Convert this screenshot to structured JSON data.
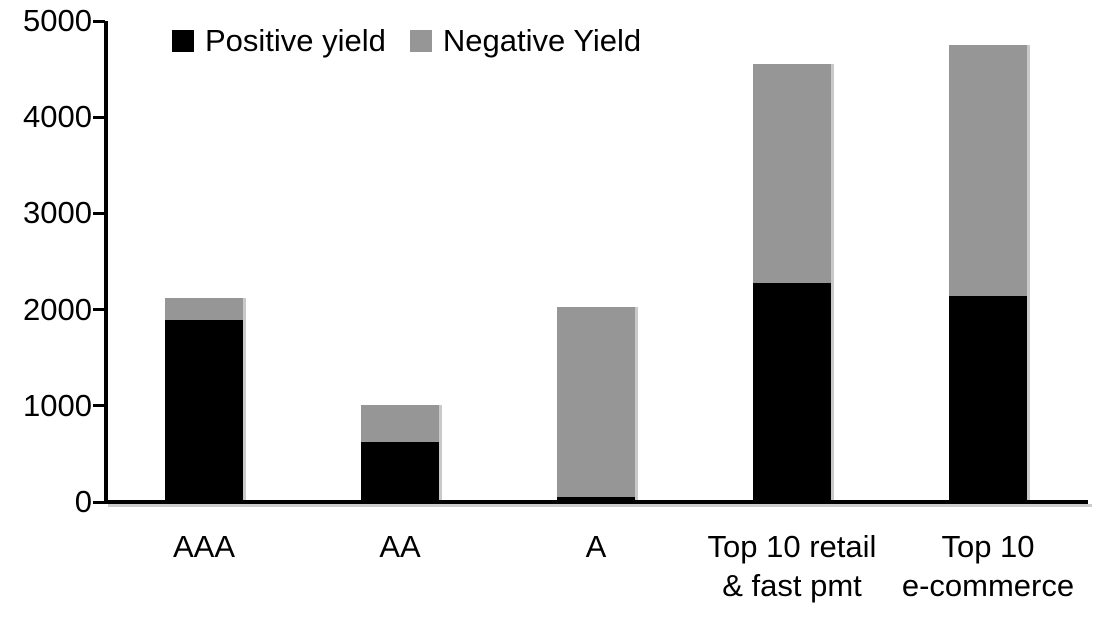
{
  "chart_data": {
    "type": "bar",
    "stacked": true,
    "title": "",
    "xlabel": "",
    "ylabel": "",
    "categories": [
      "AAA",
      "AA",
      "A",
      "Top 10 retail & fast pmt",
      "Top 10 e-commerce"
    ],
    "category_label_lines": [
      [
        "AAA"
      ],
      [
        "AA"
      ],
      [
        "A"
      ],
      [
        "Top 10 retail",
        "& fast pmt"
      ],
      [
        "Top 10",
        "e-commerce"
      ]
    ],
    "series": [
      {
        "name": "Positive yield",
        "color": "#000000",
        "values": [
          1890,
          620,
          50,
          2280,
          2140
        ]
      },
      {
        "name": "Negative Yield",
        "color": "#969696",
        "values": [
          230,
          390,
          1980,
          2270,
          2610
        ]
      }
    ],
    "ylim": [
      0,
      5000
    ],
    "yticks": [
      0,
      1000,
      2000,
      3000,
      4000,
      5000
    ],
    "grid": false,
    "legend_position": "top-left"
  },
  "colors": {
    "background": "#ffffff",
    "axis": "#000000",
    "shadow": "#c9c9c9",
    "positive": "#000000",
    "negative": "#969696"
  }
}
